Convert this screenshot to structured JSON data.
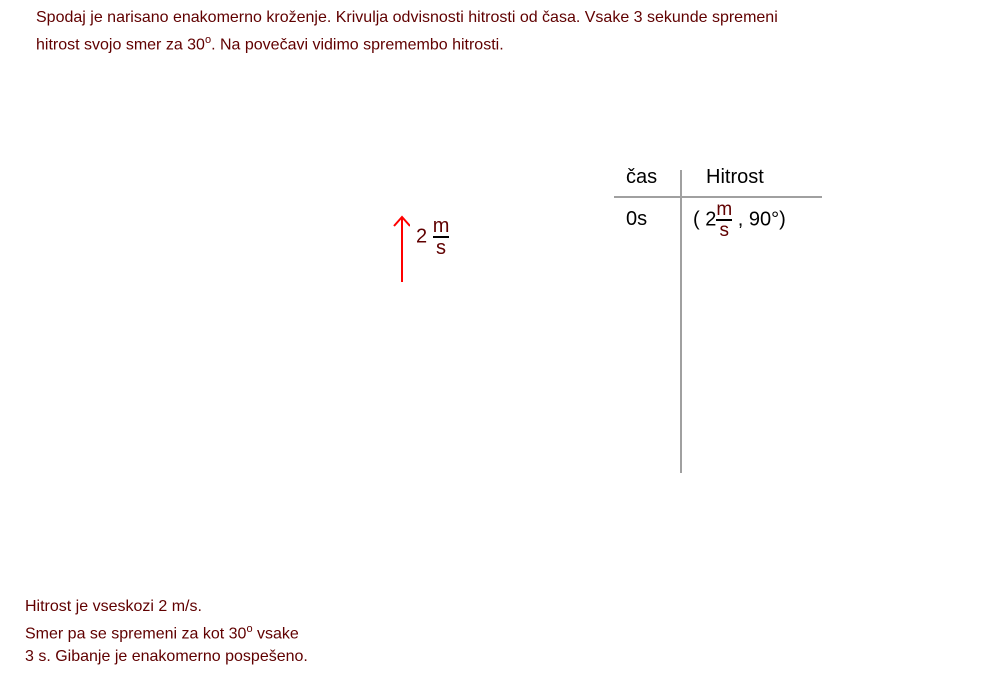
{
  "intro": {
    "line1": "Spodaj je narisano enakomerno kroženje. Krivulja odvisnosti hitrosti od časa. Vsake 3 sekunde spremeni",
    "line2a": "hitrost svojo smer za 30",
    "deg": "o",
    "line2b": ". Na povečavi vidimo spremembo hitrosti."
  },
  "vector": {
    "value": "2",
    "unit_num": "m",
    "unit_den": "s",
    "color": "#ff0000"
  },
  "table": {
    "headers": [
      "čas",
      "Hitrost"
    ],
    "rows": [
      {
        "time": "0s",
        "open": "( 2",
        "num": "m",
        "den": "s",
        "angle": ", 90°)"
      }
    ]
  },
  "note": {
    "line1": "Hitrost je vseskozi 2 m/s.",
    "line2a": "Smer pa se spremeni za kot 30",
    "deg": "o",
    "line2b": " vsake",
    "line3": "3 s. Gibanje je enakomerno pospešeno."
  }
}
